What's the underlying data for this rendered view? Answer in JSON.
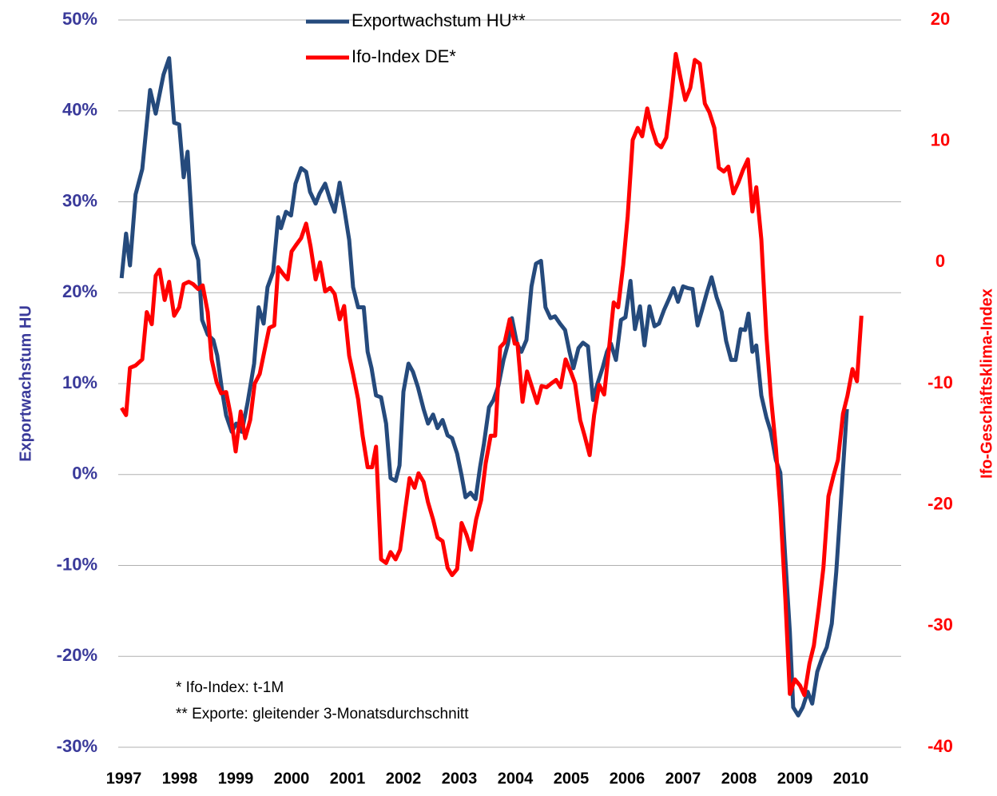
{
  "chart_data": {
    "type": "line",
    "y_label": "Exportwachstum HU",
    "y2_label": "Ifo-Geschäftsklima-Index",
    "annotations": [
      "* Ifo-Index: t-1M",
      "** Exporte: gleitender 3-Monatsdurchschnitt"
    ],
    "xlim": [
      1996.9,
      2010.9
    ],
    "xticks": [
      1997,
      1998,
      1999,
      2000,
      2001,
      2002,
      2003,
      2004,
      2005,
      2006,
      2007,
      2008,
      2009,
      2010
    ],
    "ylim": [
      -30,
      50
    ],
    "yticks": [
      {
        "value": -30,
        "label": "-30%"
      },
      {
        "value": -20,
        "label": "-20%"
      },
      {
        "value": -10,
        "label": "-10%"
      },
      {
        "value": 0,
        "label": "0%"
      },
      {
        "value": 10,
        "label": "10%"
      },
      {
        "value": 20,
        "label": "20%"
      },
      {
        "value": 30,
        "label": "30%"
      },
      {
        "value": 40,
        "label": "40%"
      },
      {
        "value": 50,
        "label": "50%"
      }
    ],
    "y2lim": [
      -40,
      20
    ],
    "y2ticks": [
      -40,
      -30,
      -20,
      -10,
      0,
      10,
      20
    ],
    "grid": true,
    "legend": "top",
    "series": [
      {
        "name": "Exportwachstum HU**",
        "color": "#254a7c",
        "axis": "y",
        "x": [
          1996.96,
          1997.04,
          1997.11,
          1997.21,
          1997.33,
          1997.47,
          1997.57,
          1997.71,
          1997.81,
          1997.9,
          1997.99,
          1998.07,
          1998.14,
          1998.24,
          1998.33,
          1998.4,
          1998.5,
          1998.6,
          1998.67,
          1998.76,
          1998.83,
          1998.93,
          1999.01,
          1999.11,
          1999.21,
          1999.33,
          1999.41,
          1999.5,
          1999.57,
          1999.67,
          1999.76,
          1999.81,
          1999.9,
          1999.99,
          2000.07,
          2000.17,
          2000.26,
          2000.33,
          2000.43,
          2000.5,
          2000.6,
          2000.69,
          2000.77,
          2000.86,
          2000.94,
          2001.03,
          2001.1,
          2001.19,
          2001.29,
          2001.36,
          2001.43,
          2001.51,
          2001.6,
          2001.69,
          2001.77,
          2001.86,
          2001.93,
          2002,
          2002.09,
          2002.17,
          2002.26,
          2002.36,
          2002.44,
          2002.53,
          2002.61,
          2002.7,
          2002.79,
          2002.87,
          2002.96,
          2003.04,
          2003.11,
          2003.2,
          2003.29,
          2003.37,
          2003.44,
          2003.53,
          2003.61,
          2003.7,
          2003.79,
          2003.87,
          2003.94,
          2004.03,
          2004.11,
          2004.2,
          2004.29,
          2004.37,
          2004.46,
          2004.54,
          2004.63,
          2004.71,
          2004.8,
          2004.89,
          2004.97,
          2005.04,
          2005.13,
          2005.21,
          2005.3,
          2005.39,
          2005.47,
          2005.56,
          2005.64,
          2005.71,
          2005.8,
          2005.89,
          2005.97,
          2006.06,
          2006.14,
          2006.23,
          2006.31,
          2006.4,
          2006.49,
          2006.57,
          2006.66,
          2006.74,
          2006.83,
          2006.91,
          2007,
          2007.09,
          2007.17,
          2007.26,
          2007.34,
          2007.43,
          2007.51,
          2007.6,
          2007.69,
          2007.77,
          2007.86,
          2007.94,
          2008.03,
          2008.11,
          2008.17,
          2008.24,
          2008.31,
          2008.4,
          2008.49,
          2008.57,
          2008.66,
          2008.74,
          2008.83,
          2008.91,
          2008.97,
          2009.06,
          2009.14,
          2009.23,
          2009.31,
          2009.4,
          2009.49,
          2009.57,
          2009.66,
          2009.74,
          2009.83,
          2009.93
        ],
        "values": [
          21.6,
          26.5,
          23,
          30.8,
          33.6,
          42.3,
          39.7,
          44,
          45.8,
          38.7,
          38.5,
          32.7,
          35.5,
          25.4,
          23.6,
          17,
          15.4,
          14.8,
          13.1,
          9.1,
          6.5,
          4.7,
          5.6,
          4.7,
          7.8,
          12.2,
          18.4,
          16.6,
          20.6,
          22.3,
          28.3,
          27.1,
          28.9,
          28.5,
          32,
          33.7,
          33.3,
          31.1,
          29.8,
          30.9,
          32,
          30.2,
          28.9,
          32.1,
          29.3,
          25.8,
          20.6,
          18.4,
          18.4,
          13.5,
          11.7,
          8.7,
          8.5,
          5.6,
          -0.4,
          -0.7,
          1,
          9.1,
          12.2,
          11.3,
          9.6,
          7.2,
          5.6,
          6.6,
          5.1,
          6,
          4.3,
          4,
          2.3,
          -0.1,
          -2.5,
          -2,
          -2.7,
          0.8,
          3.4,
          7.4,
          8.2,
          9.8,
          12.6,
          14.4,
          17.2,
          14.4,
          13.5,
          14.8,
          20.7,
          23.2,
          23.5,
          18.4,
          17.2,
          17.4,
          16.6,
          15.9,
          13.5,
          11.7,
          13.9,
          14.5,
          14.1,
          8.2,
          10,
          11.7,
          13.5,
          14.4,
          12.6,
          17,
          17.3,
          21.3,
          16,
          18.5,
          14.2,
          18.5,
          16.3,
          16.6,
          18.1,
          19.2,
          20.5,
          19,
          20.7,
          20.5,
          20.4,
          16.4,
          18.1,
          20.1,
          21.7,
          19.5,
          17.9,
          14.7,
          12.6,
          12.6,
          16,
          15.9,
          17.7,
          13.5,
          14.2,
          8.7,
          6.3,
          4.7,
          1.6,
          0.2,
          -9.4,
          -17.3,
          -25.6,
          -26.5,
          -25.6,
          -23.9,
          -25.2,
          -21.7,
          -20.1,
          -19,
          -16.4,
          -10.7,
          -2.3,
          7.2
        ]
      },
      {
        "name": "Ifo-Index DE*",
        "color": "#ff0000",
        "axis": "y2",
        "x": [
          1996.96,
          1997.04,
          1997.11,
          1997.21,
          1997.33,
          1997.41,
          1997.5,
          1997.57,
          1997.64,
          1997.73,
          1997.81,
          1997.9,
          1997.99,
          1998.07,
          1998.16,
          1998.24,
          1998.33,
          1998.41,
          1998.5,
          1998.57,
          1998.66,
          1998.74,
          1998.83,
          1998.91,
          1999,
          1999.09,
          1999.17,
          1999.26,
          1999.34,
          1999.43,
          1999.51,
          1999.6,
          1999.69,
          1999.76,
          1999.84,
          1999.93,
          2000,
          2000.09,
          2000.17,
          2000.26,
          2000.34,
          2000.43,
          2000.51,
          2000.6,
          2000.69,
          2000.77,
          2000.86,
          2000.94,
          2001.03,
          2001.1,
          2001.19,
          2001.27,
          2001.36,
          2001.44,
          2001.51,
          2001.6,
          2001.69,
          2001.77,
          2001.86,
          2001.94,
          2002.03,
          2002.11,
          2002.2,
          2002.27,
          2002.36,
          2002.44,
          2002.53,
          2002.61,
          2002.7,
          2002.79,
          2002.87,
          2002.96,
          2003.04,
          2003.13,
          2003.21,
          2003.3,
          2003.39,
          2003.47,
          2003.56,
          2003.64,
          2003.73,
          2003.81,
          2003.9,
          2003.99,
          2004.04,
          2004.13,
          2004.21,
          2004.3,
          2004.39,
          2004.47,
          2004.56,
          2004.64,
          2004.73,
          2004.81,
          2004.9,
          2004.99,
          2005.07,
          2005.16,
          2005.24,
          2005.33,
          2005.41,
          2005.5,
          2005.59,
          2005.67,
          2005.76,
          2005.84,
          2005.93,
          2006.01,
          2006.1,
          2006.19,
          2006.27,
          2006.36,
          2006.44,
          2006.53,
          2006.61,
          2006.7,
          2006.79,
          2006.87,
          2006.96,
          2007.04,
          2007.13,
          2007.21,
          2007.3,
          2007.39,
          2007.47,
          2007.56,
          2007.64,
          2007.73,
          2007.81,
          2007.9,
          2007.99,
          2008.07,
          2008.16,
          2008.24,
          2008.31,
          2008.4,
          2008.49,
          2008.57,
          2008.66,
          2008.74,
          2008.83,
          2008.91,
          2009,
          2009.09,
          2009.17,
          2009.26,
          2009.34,
          2009.43,
          2009.51,
          2009.6,
          2009.69,
          2009.77,
          2009.86,
          2009.94,
          2010.03,
          2010.11,
          2010.19
        ],
        "values": [
          -12,
          -12.6,
          -8.7,
          -8.5,
          -8,
          -4.1,
          -5.1,
          -1.1,
          -0.6,
          -3.1,
          -1.6,
          -4.4,
          -3.7,
          -1.8,
          -1.6,
          -1.8,
          -2.2,
          -1.9,
          -4.1,
          -8,
          -9.9,
          -10.8,
          -10.7,
          -12.6,
          -15.6,
          -12.3,
          -14.5,
          -13,
          -10,
          -9.2,
          -7.4,
          -5.4,
          -5.2,
          -0.4,
          -0.9,
          -1.4,
          0.9,
          1.5,
          2,
          3.2,
          1.3,
          -1.4,
          0,
          -2.4,
          -2.1,
          -2.6,
          -4.7,
          -3.6,
          -7.7,
          -9.2,
          -11.3,
          -14.3,
          -16.9,
          -16.9,
          -15.2,
          -24.5,
          -24.8,
          -23.9,
          -24.5,
          -23.7,
          -20.5,
          -17.8,
          -18.6,
          -17.4,
          -18.1,
          -19.8,
          -21.2,
          -22.7,
          -23,
          -25.2,
          -25.8,
          -25.3,
          -21.5,
          -22.5,
          -23.7,
          -21.2,
          -19.6,
          -16.6,
          -14.3,
          -14.3,
          -7,
          -6.6,
          -4.7,
          -6.7,
          -6.7,
          -11.5,
          -9,
          -10.3,
          -11.6,
          -10.2,
          -10.3,
          -10,
          -9.7,
          -10.3,
          -8,
          -9,
          -10,
          -13,
          -14.3,
          -15.9,
          -12.6,
          -10.1,
          -10.9,
          -7.4,
          -3.3,
          -3.7,
          -0.2,
          3.8,
          10.1,
          11.1,
          10.4,
          12.7,
          11.1,
          9.8,
          9.5,
          10.3,
          13.7,
          17.2,
          15.1,
          13.4,
          14.4,
          16.7,
          16.4,
          13.1,
          12.4,
          11.1,
          7.8,
          7.5,
          7.9,
          5.7,
          6.6,
          7.6,
          8.5,
          4.2,
          6.2,
          1.9,
          -6,
          -11,
          -15.3,
          -20.2,
          -27.8,
          -35.6,
          -34.4,
          -34.9,
          -35.7,
          -33.1,
          -31.6,
          -28.4,
          -25.2,
          -19.3,
          -17.6,
          -16.3,
          -12.5,
          -11,
          -8.8,
          -9.8,
          -4.4
        ]
      }
    ]
  }
}
